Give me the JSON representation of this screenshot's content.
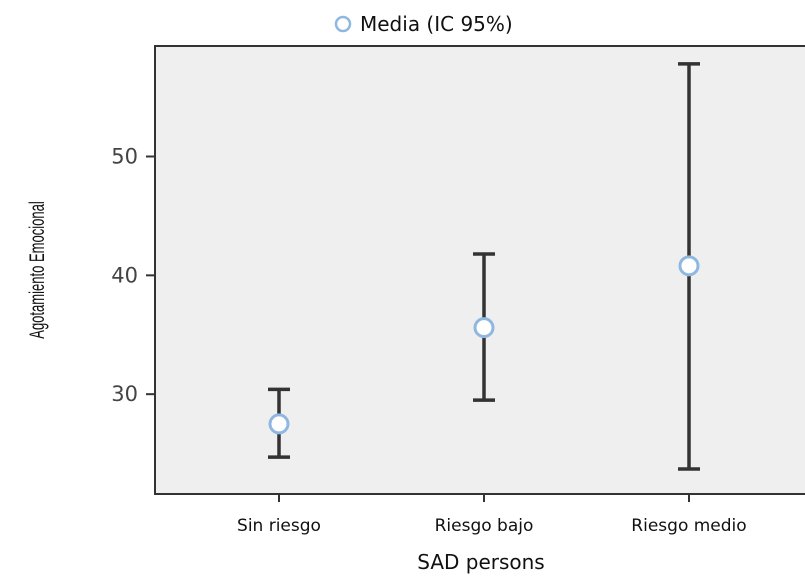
{
  "chart_data": {
    "type": "scatter",
    "subtype": "errorbar",
    "title": "",
    "legend": {
      "label": "Media (IC 95%)",
      "position": "top-center"
    },
    "xlabel": "SAD persons",
    "ylabel": "Agotamiento Emocional",
    "categories": [
      "Sin riesgo",
      "Riesgo bajo",
      "Riesgo medio"
    ],
    "series": [
      {
        "name": "Media (IC 95%)",
        "mean": [
          27.5,
          35.6,
          40.8
        ],
        "lower": [
          24.7,
          29.5,
          23.7
        ],
        "upper": [
          30.4,
          41.8,
          57.8
        ]
      }
    ],
    "ylim": [
      21.6,
      59.3
    ],
    "yticks": [
      30,
      40,
      50
    ],
    "ytick_labels": [
      "30",
      "40",
      "50"
    ],
    "grid": false,
    "colors": {
      "plot_background": "#efefef",
      "marker_stroke": "#8fb8e0",
      "marker_fill": "#ffffff",
      "errorbar": "#333333",
      "axis": "#333333"
    }
  }
}
